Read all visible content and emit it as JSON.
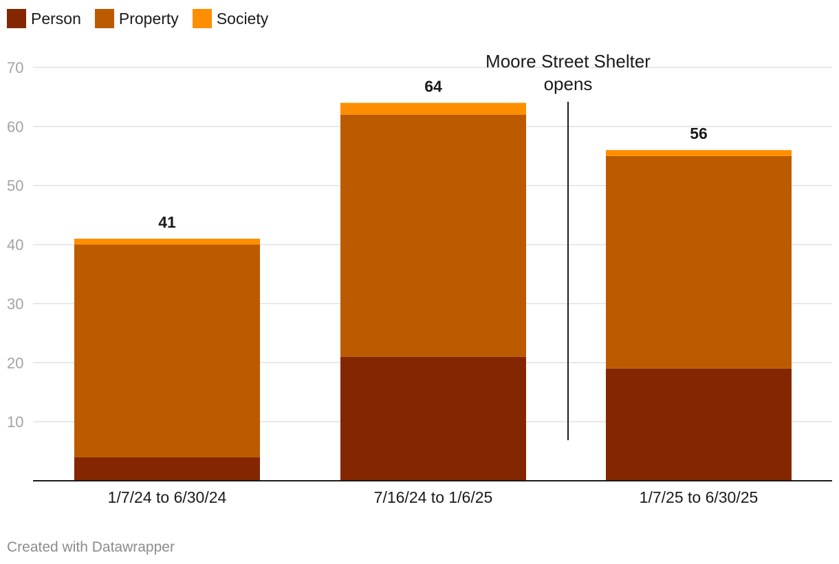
{
  "chart_data": {
    "type": "bar",
    "stacked": true,
    "categories": [
      "1/7/24 to 6/30/24",
      "7/16/24 to 1/6/25",
      "1/7/25 to 6/30/25"
    ],
    "series": [
      {
        "name": "Person",
        "values": [
          4,
          21,
          19
        ],
        "color": "#842700"
      },
      {
        "name": "Property",
        "values": [
          36,
          41,
          36
        ],
        "color": "#bc5a00"
      },
      {
        "name": "Society",
        "values": [
          1,
          2,
          1
        ],
        "color": "#ff8e00"
      }
    ],
    "totals": [
      "41",
      "64",
      "56"
    ],
    "ylim": [
      0,
      70
    ],
    "yticks": [
      "10",
      "20",
      "30",
      "40",
      "50",
      "60",
      "70"
    ],
    "grid": true,
    "legend": "top-left",
    "annotation": {
      "lines": [
        "Moore Street Shelter",
        "opens"
      ],
      "between_categories": [
        1,
        2
      ]
    }
  },
  "footer": {
    "credit": "Created with Datawrapper"
  }
}
